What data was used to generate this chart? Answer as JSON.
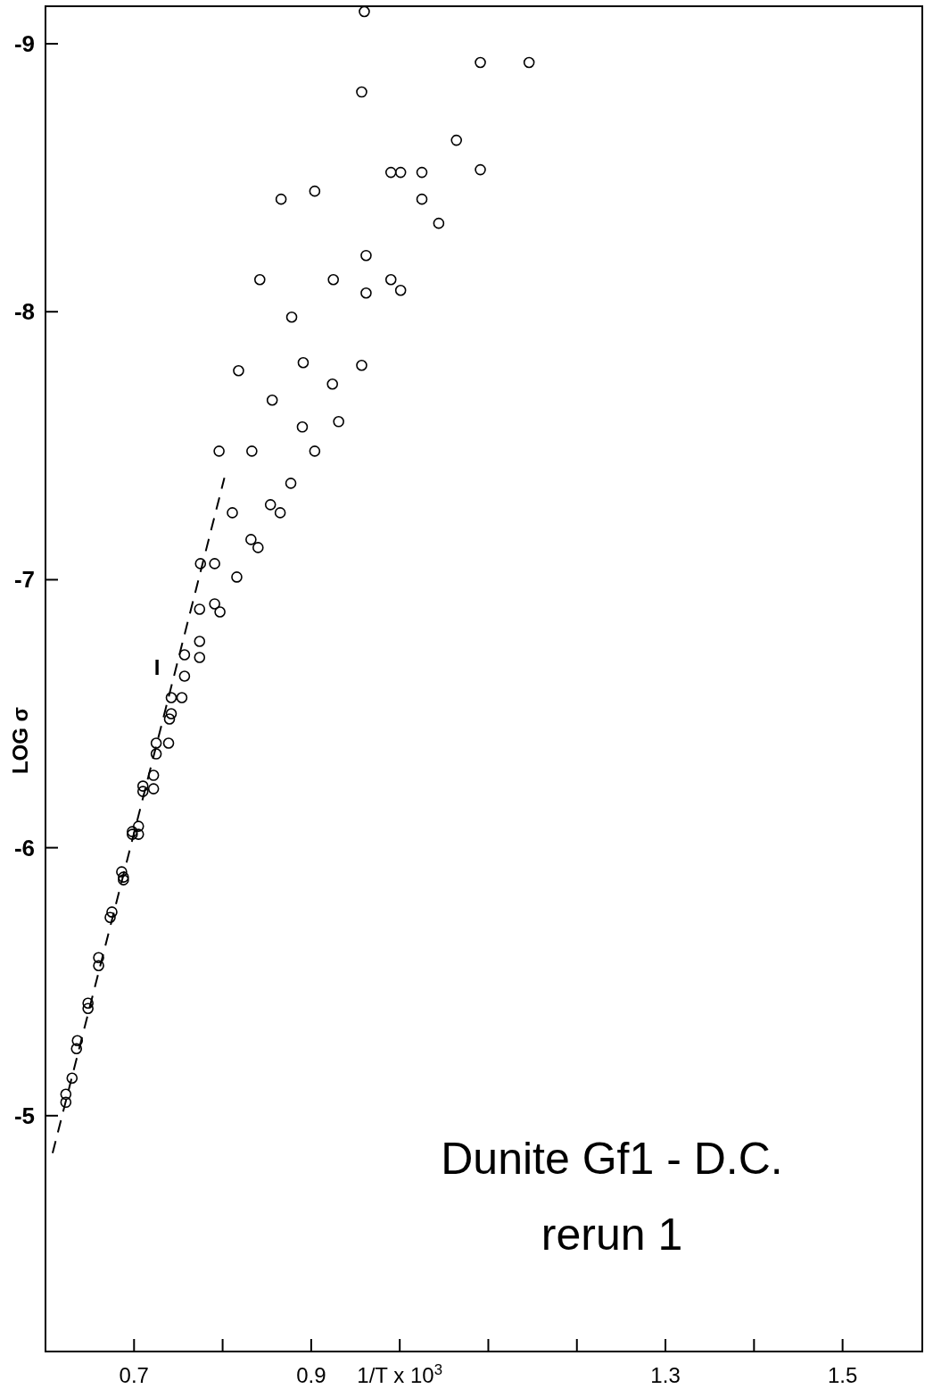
{
  "chart_data": {
    "type": "scatter",
    "xlabel": "1/T x 10$^{3}$",
    "ylabel": "LOG σ",
    "xlim": [
      0.6,
      1.59
    ],
    "ylim": [
      -4.12,
      -9.14
    ],
    "xticks": [
      0.7,
      {
        "value": 0.8,
        "label": null
      },
      0.9,
      {
        "value": 1.0,
        "label": null
      },
      {
        "value": 1.1,
        "label": null
      },
      {
        "value": 1.2,
        "label": null
      },
      1.3,
      {
        "value": 1.4,
        "label": null
      },
      1.5
    ],
    "yticks": [
      -9,
      -8,
      -7,
      -6,
      -5
    ],
    "grid": false,
    "marker": "circle",
    "annotations": [
      "Dunite  Gf1  -  D.C.",
      "rerun 1",
      "I"
    ],
    "series": [
      {
        "color": "#000000",
        "x": [
          0.96,
          1.091,
          1.146,
          0.957,
          1.064,
          0.99,
          1.001,
          1.025,
          1.091,
          0.904,
          0.866,
          1.025,
          1.044,
          0.962,
          0.842,
          0.925,
          0.99,
          0.962,
          1.001,
          0.878,
          0.818,
          0.891,
          0.957,
          0.924,
          0.856,
          0.89,
          0.931,
          0.796,
          0.833,
          0.904,
          0.877,
          0.854,
          0.865,
          0.811,
          0.832,
          0.84,
          0.775,
          0.791,
          0.816,
          0.774,
          0.791,
          0.797,
          0.774,
          0.757,
          0.774,
          0.757,
          0.742,
          0.754,
          0.742,
          0.74,
          0.739,
          0.725,
          0.725,
          0.722,
          0.71,
          0.722,
          0.71,
          0.705,
          0.698,
          0.705,
          0.698,
          0.686,
          0.688,
          0.688,
          0.675,
          0.673,
          0.66,
          0.66,
          0.648,
          0.648,
          0.636,
          0.635,
          0.63,
          0.623,
          0.623
        ],
        "values": [
          -9.12,
          -8.93,
          -8.93,
          -8.82,
          -8.64,
          -8.52,
          -8.52,
          -8.52,
          -8.53,
          -8.45,
          -8.42,
          -8.42,
          -8.33,
          -8.21,
          -8.12,
          -8.12,
          -8.12,
          -8.07,
          -8.08,
          -7.98,
          -7.78,
          -7.81,
          -7.8,
          -7.73,
          -7.67,
          -7.57,
          -7.59,
          -7.48,
          -7.48,
          -7.48,
          -7.36,
          -7.28,
          -7.25,
          -7.25,
          -7.15,
          -7.12,
          -7.06,
          -7.06,
          -7.01,
          -6.89,
          -6.91,
          -6.88,
          -6.77,
          -6.72,
          -6.71,
          -6.64,
          -6.56,
          -6.56,
          -6.5,
          -6.48,
          -6.39,
          -6.39,
          -6.35,
          -6.27,
          -6.23,
          -6.22,
          -6.21,
          -6.08,
          -6.06,
          -6.05,
          -6.05,
          -5.91,
          -5.89,
          -5.88,
          -5.76,
          -5.74,
          -5.59,
          -5.56,
          -5.42,
          -5.4,
          -5.28,
          -5.25,
          -5.14,
          -5.08,
          -5.05
        ]
      },
      {
        "type": "line",
        "color": "#000000",
        "line_style": "dashed",
        "marker": "none",
        "x": [
          0.608,
          0.802
        ],
        "values": [
          -4.86,
          -7.38
        ]
      }
    ]
  }
}
